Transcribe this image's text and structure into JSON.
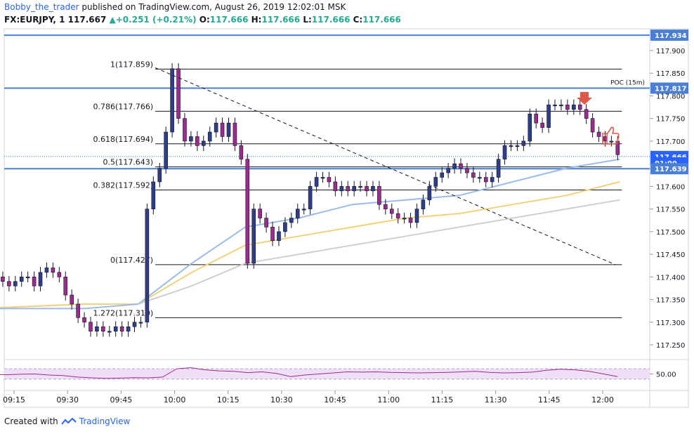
{
  "header": {
    "author": "Bobby_the_trader",
    "published_text": "published on TradingView.com, August 26, 2019 12:02:01 MSK",
    "symbol": "FX:EURJPY, 1",
    "last": "117.667",
    "change": "+0.251 (+0.21%)",
    "o_label": "O:",
    "o_value": "117.666",
    "h_label": "H:",
    "h_value": "117.666",
    "l_label": "L:",
    "l_value": "117.666",
    "c_label": "C:",
    "c_value": "117.666"
  },
  "footer": {
    "created_with": "Created with",
    "brand": "TradingView"
  },
  "colors": {
    "candle_up": "#2f3e8a",
    "candle_down": "#9c2a8f",
    "ema_fast": "#9bbbea",
    "ema_mid": "#f1d27a",
    "ema_slow": "#cfcfcf",
    "hline": "#4a7fd4",
    "price_tag": "#2962ff",
    "rsi_line": "#9c2a8f",
    "rsi_band": "#efe0f7",
    "arrow": "#e0584a"
  },
  "chart_data": {
    "type": "candlestick",
    "title": "",
    "ylim": [
      117.19,
      117.96
    ],
    "time_ticks": [
      "09:15",
      "09:30",
      "09:45",
      "10:00",
      "10:15",
      "10:30",
      "10:45",
      "11:00",
      "11:15",
      "11:30",
      "11:45",
      "12:00"
    ],
    "price_ticks": [
      "117.250",
      "117.300",
      "117.350",
      "117.400",
      "117.450",
      "117.500",
      "117.550",
      "117.600",
      "117.650",
      "117.700",
      "117.750",
      "117.800",
      "117.850",
      "117.900"
    ],
    "axis_labels": [
      {
        "text": "117.934",
        "value": 117.934
      },
      {
        "text": "117.817",
        "value": 117.817
      },
      {
        "text": "117.666",
        "value": 117.666
      },
      {
        "text": "01:00",
        "value": 117.652
      },
      {
        "text": "117.639",
        "value": 117.639
      }
    ],
    "horizontal_levels": [
      117.934,
      117.817,
      117.639
    ],
    "poc_label": "POC (15m)",
    "poc_value": 117.817,
    "fibonacci": [
      {
        "label": "1(117.859)",
        "value": 117.859
      },
      {
        "label": "0.786(117.766)",
        "value": 117.766
      },
      {
        "label": "0.618(117.694)",
        "value": 117.694
      },
      {
        "label": "0.5(117.643)",
        "value": 117.643
      },
      {
        "label": "0.382(117.592)",
        "value": 117.592
      },
      {
        "label": "0(117.427)",
        "value": 117.427
      },
      {
        "label": "1.272(117.310)",
        "value": 117.31
      }
    ],
    "trendline": {
      "from": [
        9.91,
        117.862
      ],
      "to": [
        12.06,
        117.427
      ]
    },
    "closes": [
      117.38,
      117.39,
      117.4,
      117.4,
      117.39,
      117.38,
      117.39,
      117.4,
      117.4,
      117.38,
      117.41,
      117.42,
      117.41,
      117.4,
      117.36,
      117.34,
      117.31,
      117.3,
      117.28,
      117.29,
      117.28,
      117.28,
      117.29,
      117.28,
      117.29,
      117.3,
      117.3,
      117.55,
      117.61,
      117.64,
      117.72,
      117.86,
      117.75,
      117.7,
      117.71,
      117.69,
      117.7,
      117.72,
      117.74,
      117.71,
      117.74,
      117.69,
      117.66,
      117.43,
      117.55,
      117.53,
      117.51,
      117.48,
      117.5,
      117.52,
      117.53,
      117.55,
      117.55,
      117.6,
      117.62,
      117.62,
      117.61,
      117.59,
      117.6,
      117.59,
      117.6,
      117.6,
      117.59,
      117.6,
      117.56,
      117.55,
      117.54,
      117.53,
      117.53,
      117.52,
      117.55,
      117.57,
      117.6,
      117.62,
      117.63,
      117.64,
      117.65,
      117.64,
      117.63,
      117.62,
      117.62,
      117.61,
      117.62,
      117.66,
      117.69,
      117.69,
      117.69,
      117.7,
      117.76,
      117.74,
      117.73,
      117.78,
      117.78,
      117.78,
      117.77,
      117.78,
      117.77,
      117.75,
      117.72,
      117.71,
      117.7,
      117.7,
      117.67
    ],
    "ema_fast": [
      [
        9.08,
        117.33
      ],
      [
        9.58,
        117.33
      ],
      [
        9.83,
        117.34
      ],
      [
        10.08,
        117.43
      ],
      [
        10.33,
        117.51
      ],
      [
        10.58,
        117.53
      ],
      [
        10.83,
        117.56
      ],
      [
        11.08,
        117.57
      ],
      [
        11.33,
        117.58
      ],
      [
        11.58,
        117.61
      ],
      [
        11.83,
        117.64
      ],
      [
        12.08,
        117.66
      ]
    ],
    "ema_mid": [
      [
        9.08,
        117.33
      ],
      [
        9.58,
        117.34
      ],
      [
        9.83,
        117.34
      ],
      [
        10.08,
        117.41
      ],
      [
        10.33,
        117.47
      ],
      [
        10.58,
        117.49
      ],
      [
        10.83,
        117.51
      ],
      [
        11.08,
        117.53
      ],
      [
        11.33,
        117.54
      ],
      [
        11.58,
        117.56
      ],
      [
        11.83,
        117.58
      ],
      [
        12.08,
        117.61
      ]
    ],
    "ema_slow": [
      [
        9.08,
        117.33
      ],
      [
        9.58,
        117.34
      ],
      [
        9.83,
        117.34
      ],
      [
        10.08,
        117.38
      ],
      [
        10.33,
        117.43
      ],
      [
        10.58,
        117.45
      ],
      [
        10.83,
        117.47
      ],
      [
        11.08,
        117.49
      ],
      [
        11.33,
        117.51
      ],
      [
        11.58,
        117.53
      ],
      [
        11.83,
        117.55
      ],
      [
        12.08,
        117.57
      ]
    ],
    "rsi": {
      "tick": "50.00",
      "band": [
        30,
        70
      ],
      "values": [
        45,
        48,
        47,
        49,
        50,
        46,
        44,
        38,
        35,
        33,
        34,
        36,
        35,
        38,
        70,
        74,
        66,
        62,
        60,
        55,
        58,
        52,
        40,
        46,
        50,
        54,
        58,
        57,
        58,
        56,
        55,
        54,
        55,
        56,
        58,
        60,
        56,
        54,
        55,
        57,
        64,
        68,
        66,
        60,
        50,
        40
      ]
    }
  }
}
